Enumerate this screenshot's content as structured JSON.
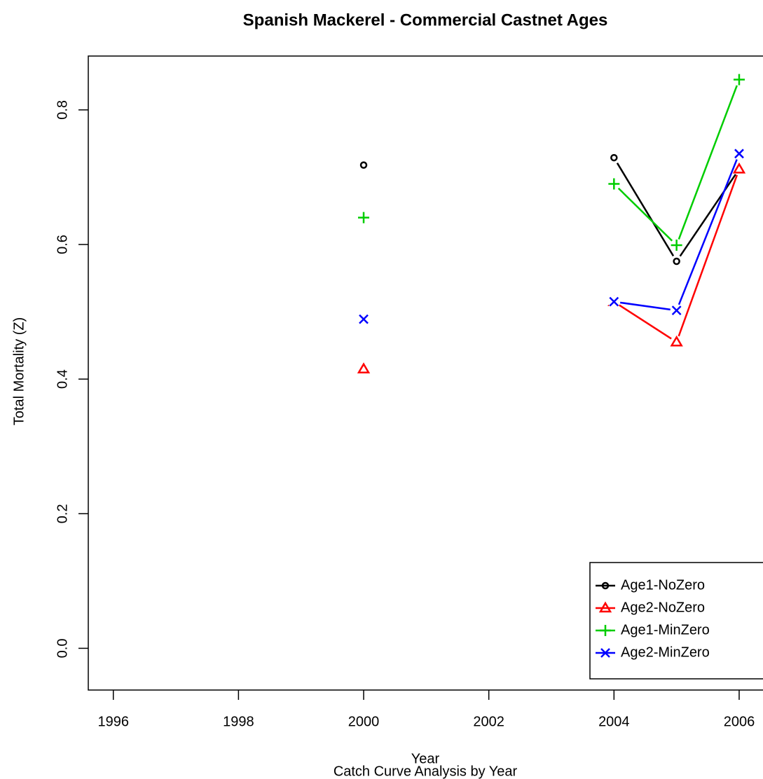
{
  "chart_data": {
    "type": "line",
    "title": "Spanish Mackerel - Commercial Castnet Ages",
    "x_label": "Year",
    "subtitle": "Catch Curve Analysis by Year",
    "y_label": "Total Mortality (Z)",
    "x": [
      2000,
      2001,
      2002,
      2003,
      2004,
      2005,
      2006
    ],
    "series": [
      {
        "name": "Age1-NoZero",
        "color": "#000000",
        "marker": "circle",
        "values": [
          0.718,
          null,
          null,
          null,
          0.729,
          0.575,
          0.712
        ]
      },
      {
        "name": "Age2-NoZero",
        "color": "#ff0000",
        "marker": "triangle",
        "values": [
          0.415,
          null,
          null,
          null,
          0.515,
          0.455,
          0.712
        ]
      },
      {
        "name": "Age1-MinZero",
        "color": "#00cd00",
        "marker": "plus",
        "values": [
          0.64,
          null,
          null,
          null,
          0.69,
          0.599,
          0.845
        ]
      },
      {
        "name": "Age2-MinZero",
        "color": "#0000ff",
        "marker": "cross",
        "values": [
          0.489,
          null,
          null,
          null,
          0.515,
          0.502,
          0.735
        ]
      }
    ],
    "xlim": [
      1995.6,
      2006.4
    ],
    "xticks": [
      1996,
      1998,
      2000,
      2002,
      2004,
      2006
    ],
    "ylim": [
      -0.062,
      0.88
    ],
    "yticks": [
      {
        "value": 0,
        "label": "0.0"
      },
      0.2,
      0.4,
      0.6,
      0.8
    ],
    "legend": "bottomright"
  }
}
